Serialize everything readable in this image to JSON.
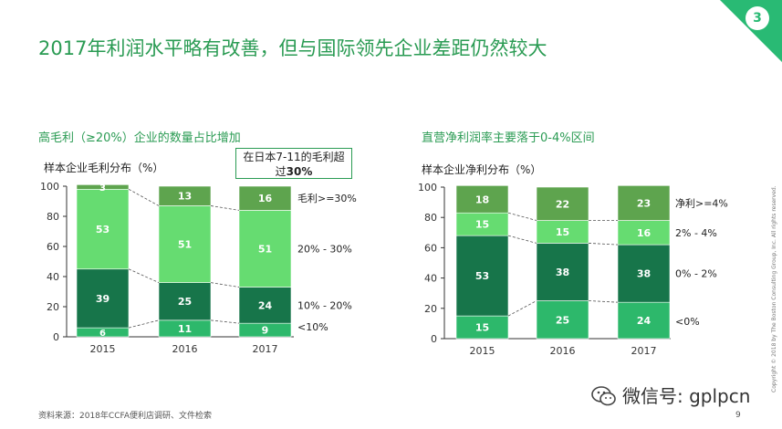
{
  "header": {
    "title": "2017年利润水平略有改善，但与国际领先企业差距仍然较大",
    "page_number": "3"
  },
  "chart_data": [
    {
      "type": "bar",
      "stacked": true,
      "subtitle": "高毛利（≥20%）企业的数量占比增加",
      "ylabel": "样本企业毛利分布（%）",
      "categories": [
        "2015",
        "2016",
        "2017"
      ],
      "yticks": [
        "0",
        "20",
        "40",
        "60",
        "80",
        "100"
      ],
      "ylim": [
        0,
        100
      ],
      "series": [
        {
          "name": "<10%",
          "values": [
            6,
            11,
            9
          ],
          "color": "#2db86b",
          "label_color": "#ffffff"
        },
        {
          "name": "10% - 20%",
          "values": [
            39,
            25,
            24
          ],
          "color": "#17754a",
          "label_color": "#ffffff"
        },
        {
          "name": "20% - 30%",
          "values": [
            53,
            51,
            51
          ],
          "color": "#66dc71",
          "label_color": "#ffffff"
        },
        {
          "name": "毛利>=30%",
          "values": [
            3,
            13,
            16
          ],
          "color": "#5ea44e",
          "label_color": "#ffffff"
        }
      ],
      "callout": {
        "text": "在日本7-11的毛利超",
        "emphasis_prefix": "过",
        "emphasis_value": "30%"
      }
    },
    {
      "type": "bar",
      "stacked": true,
      "subtitle": "直营净利润率主要落于0-4%区间",
      "ylabel": "样本企业净利分布（%）",
      "categories": [
        "2015",
        "2016",
        "2017"
      ],
      "yticks": [
        "0",
        "20",
        "40",
        "60",
        "80",
        "100"
      ],
      "ylim": [
        0,
        100
      ],
      "series": [
        {
          "name": "<0%",
          "values": [
            15,
            25,
            24
          ],
          "color": "#2db86b",
          "label_color": "#ffffff"
        },
        {
          "name": "0% - 2%",
          "values": [
            53,
            38,
            38
          ],
          "color": "#17754a",
          "label_color": "#ffffff"
        },
        {
          "name": "2% - 4%",
          "values": [
            15,
            15,
            16
          ],
          "color": "#66dc71",
          "label_color": "#ffffff"
        },
        {
          "name": "净利>=4%",
          "values": [
            18,
            22,
            23
          ],
          "color": "#5ea44e",
          "label_color": "#ffffff"
        }
      ]
    }
  ],
  "footer": {
    "source": "资料来源：2018年CCFA便利店调研、文件检索",
    "page": "9",
    "copyright": "Copyright © 2018 by The Boston Consulting Group, Inc. All rights reserved.",
    "wechat": "微信号: gplpcn"
  }
}
